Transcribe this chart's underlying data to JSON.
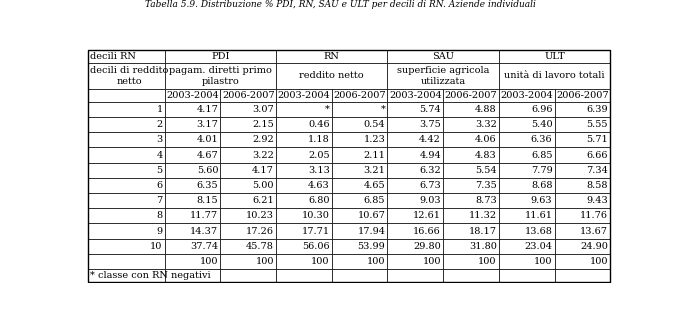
{
  "title": "Tabella 5.9. Distribuzione % PDI, RN, SAU e ULT per decili di RN. Aziende individuali",
  "rows": [
    [
      "1",
      "4.17",
      "3.07",
      "*",
      "*",
      "5.74",
      "4.88",
      "6.96",
      "6.39"
    ],
    [
      "2",
      "3.17",
      "2.15",
      "0.46",
      "0.54",
      "3.75",
      "3.32",
      "5.40",
      "5.55"
    ],
    [
      "3",
      "4.01",
      "2.92",
      "1.18",
      "1.23",
      "4.42",
      "4.06",
      "6.36",
      "5.71"
    ],
    [
      "4",
      "4.67",
      "3.22",
      "2.05",
      "2.11",
      "4.94",
      "4.83",
      "6.85",
      "6.66"
    ],
    [
      "5",
      "5.60",
      "4.17",
      "3.13",
      "3.21",
      "6.32",
      "5.54",
      "7.79",
      "7.34"
    ],
    [
      "6",
      "6.35",
      "5.00",
      "4.63",
      "4.65",
      "6.73",
      "7.35",
      "8.68",
      "8.58"
    ],
    [
      "7",
      "8.15",
      "6.21",
      "6.80",
      "6.85",
      "9.03",
      "8.73",
      "9.63",
      "9.43"
    ],
    [
      "8",
      "11.77",
      "10.23",
      "10.30",
      "10.67",
      "12.61",
      "11.32",
      "11.61",
      "11.76"
    ],
    [
      "9",
      "14.37",
      "17.26",
      "17.71",
      "17.94",
      "16.66",
      "18.17",
      "13.68",
      "13.67"
    ],
    [
      "10",
      "37.74",
      "45.78",
      "56.06",
      "53.99",
      "29.80",
      "31.80",
      "23.04",
      "24.90"
    ],
    [
      "",
      "100",
      "100",
      "100",
      "100",
      "100",
      "100",
      "100",
      "100"
    ]
  ],
  "footnote": "* classe con RN negativi",
  "bg_color": "#ffffff",
  "border_color": "#000000",
  "font_size": 7.0,
  "title_font_size": 6.5,
  "col_widths_rel": [
    1.45,
    1.05,
    1.05,
    1.05,
    1.05,
    1.05,
    1.05,
    1.05,
    1.05
  ]
}
